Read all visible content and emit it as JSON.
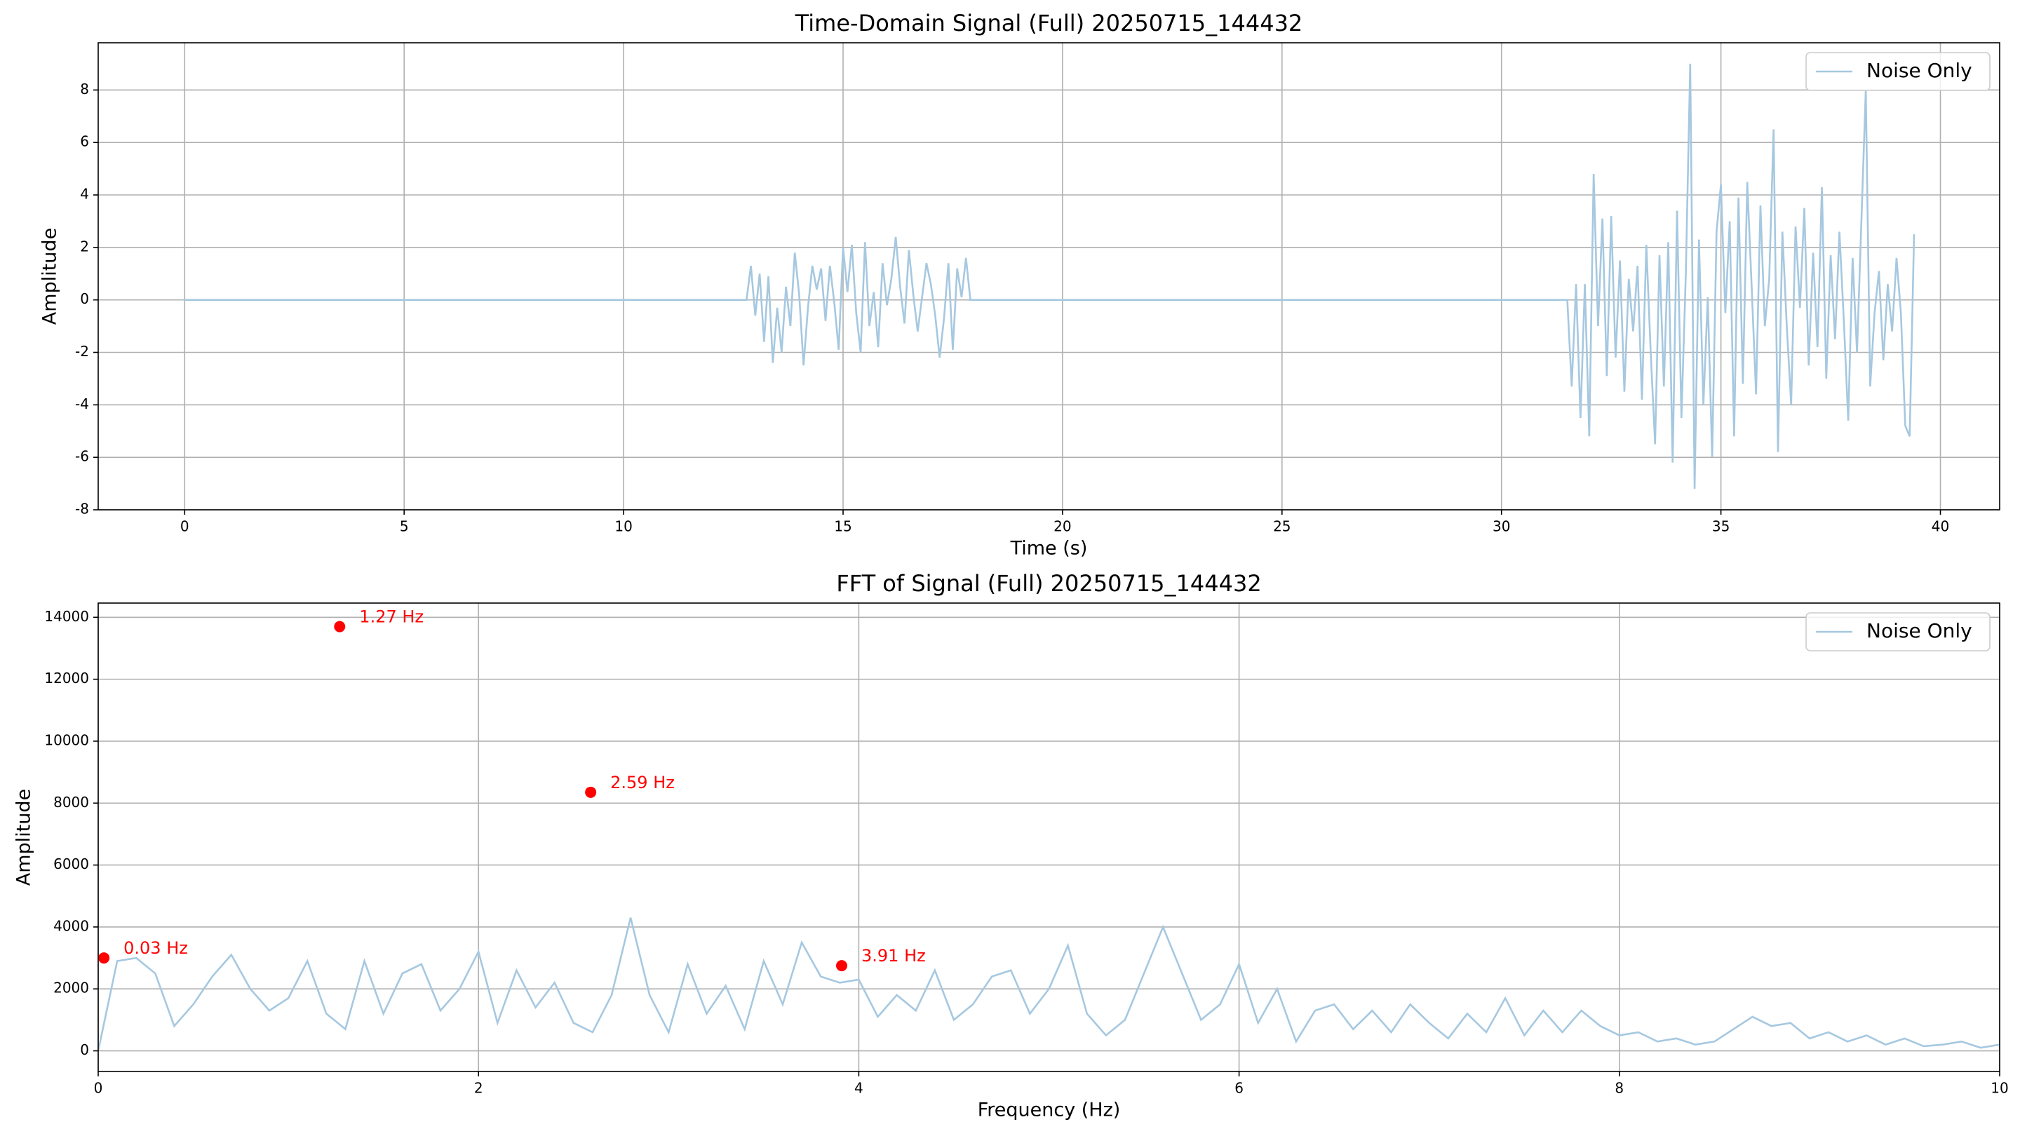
{
  "chart_data": [
    {
      "type": "line",
      "title": "Time-Domain Signal (Full) 20250715_144432",
      "xlabel": "Time (s)",
      "ylabel": "Amplitude",
      "xlim": [
        -1.97,
        41.35
      ],
      "ylim": [
        -8,
        9.8
      ],
      "xticks": [
        0,
        5,
        10,
        15,
        20,
        25,
        30,
        35,
        40
      ],
      "yticks": [
        -8,
        -6,
        -4,
        -2,
        0,
        2,
        4,
        6,
        8
      ],
      "grid": true,
      "legend": "upper right",
      "series": [
        {
          "name": "Noise Only",
          "color": "#a6c8e0",
          "x": [
            0,
            12.8,
            12.9,
            13,
            13.1,
            13.2,
            13.3,
            13.4,
            13.5,
            13.6,
            13.7,
            13.8,
            13.9,
            14,
            14.1,
            14.2,
            14.3,
            14.4,
            14.5,
            14.6,
            14.7,
            14.8,
            14.9,
            15,
            15.1,
            15.2,
            15.3,
            15.4,
            15.5,
            15.6,
            15.7,
            15.8,
            15.9,
            16,
            16.1,
            16.2,
            16.3,
            16.4,
            16.5,
            16.6,
            16.7,
            16.8,
            16.9,
            17,
            17.1,
            17.2,
            17.3,
            17.4,
            17.5,
            17.6,
            17.7,
            17.8,
            17.9,
            31.5,
            31.6,
            31.7,
            31.8,
            31.9,
            32,
            32.1,
            32.2,
            32.3,
            32.4,
            32.5,
            32.6,
            32.7,
            32.8,
            32.9,
            33,
            33.1,
            33.2,
            33.3,
            33.4,
            33.5,
            33.6,
            33.7,
            33.8,
            33.9,
            34,
            34.1,
            34.2,
            34.3,
            34.4,
            34.5,
            34.6,
            34.7,
            34.8,
            34.9,
            35,
            35.1,
            35.2,
            35.3,
            35.4,
            35.5,
            35.6,
            35.7,
            35.8,
            35.9,
            36,
            36.1,
            36.2,
            36.3,
            36.4,
            36.5,
            36.6,
            36.7,
            36.8,
            36.9,
            37,
            37.1,
            37.2,
            37.3,
            37.4,
            37.5,
            37.6,
            37.7,
            37.8,
            37.9,
            38,
            38.1,
            38.2,
            38.3,
            38.4,
            38.5,
            38.6,
            38.7,
            38.8,
            38.9,
            39,
            39.1,
            39.2,
            39.3,
            39.4
          ],
          "values": [
            0,
            0,
            1.3,
            -0.6,
            1.0,
            -1.6,
            0.9,
            -2.4,
            -0.3,
            -2.0,
            0.5,
            -1.0,
            1.8,
            0.2,
            -2.5,
            -0.3,
            1.3,
            0.4,
            1.2,
            -0.8,
            1.3,
            -0.1,
            -1.9,
            2.0,
            0.3,
            2.1,
            -0.5,
            -2.0,
            2.2,
            -1.0,
            0.3,
            -1.8,
            1.4,
            -0.2,
            0.8,
            2.4,
            0.5,
            -0.9,
            1.9,
            0.2,
            -1.2,
            0.1,
            1.4,
            0.6,
            -0.6,
            -2.2,
            -0.7,
            1.4,
            -1.9,
            1.2,
            0.1,
            1.6,
            0,
            0,
            -3.3,
            0.6,
            -4.5,
            0.6,
            -5.2,
            4.8,
            -1.0,
            3.1,
            -2.9,
            3.2,
            -2.2,
            1.5,
            -3.5,
            0.8,
            -1.2,
            1.3,
            -3.8,
            2.1,
            -2.0,
            -5.5,
            1.7,
            -3.3,
            2.2,
            -6.2,
            3.4,
            -4.5,
            1.0,
            9.0,
            -7.2,
            2.3,
            -4.0,
            0.1,
            -6.0,
            2.6,
            4.4,
            -0.5,
            3.0,
            -5.2,
            3.9,
            -3.2,
            4.5,
            0.5,
            -3.6,
            3.6,
            -1.0,
            0.8,
            6.5,
            -5.8,
            2.6,
            -1.0,
            -4.0,
            2.8,
            -0.3,
            3.5,
            -2.5,
            1.8,
            -1.8,
            4.3,
            -3.0,
            1.7,
            -1.5,
            2.6,
            -0.8,
            -4.6,
            1.6,
            -2.0,
            3.0,
            8.0,
            -3.3,
            -0.5,
            1.1,
            -2.3,
            0.6,
            -1.2,
            1.6,
            -0.5,
            -4.8,
            -5.2,
            2.5
          ]
        }
      ]
    },
    {
      "type": "line",
      "title": "FFT of Signal (Full) 20250715_144432",
      "xlabel": "Frequency (Hz)",
      "ylabel": "Amplitude",
      "xlim": [
        0,
        10
      ],
      "ylim": [
        -667,
        14460
      ],
      "xticks": [
        0,
        2,
        4,
        6,
        8,
        10
      ],
      "yticks": [
        0,
        2000,
        4000,
        6000,
        8000,
        10000,
        12000,
        14000
      ],
      "grid": true,
      "legend": "upper right",
      "series": [
        {
          "name": "Noise Only",
          "color": "#a6c8e0",
          "x": [
            0,
            0.1,
            0.2,
            0.3,
            0.4,
            0.5,
            0.6,
            0.7,
            0.8,
            0.9,
            1,
            1.1,
            1.2,
            1.3,
            1.4,
            1.5,
            1.6,
            1.7,
            1.8,
            1.9,
            2,
            2.1,
            2.2,
            2.3,
            2.4,
            2.5,
            2.6,
            2.7,
            2.8,
            2.9,
            3,
            3.1,
            3.2,
            3.3,
            3.4,
            3.5,
            3.6,
            3.7,
            3.8,
            3.9,
            4,
            4.1,
            4.2,
            4.3,
            4.4,
            4.5,
            4.6,
            4.7,
            4.8,
            4.9,
            5,
            5.1,
            5.2,
            5.3,
            5.4,
            5.5,
            5.6,
            5.7,
            5.8,
            5.9,
            6,
            6.1,
            6.2,
            6.3,
            6.4,
            6.5,
            6.6,
            6.7,
            6.8,
            6.9,
            7,
            7.1,
            7.2,
            7.3,
            7.4,
            7.5,
            7.6,
            7.7,
            7.8,
            7.9,
            8,
            8.1,
            8.2,
            8.3,
            8.4,
            8.5,
            8.6,
            8.7,
            8.8,
            8.9,
            9,
            9.1,
            9.2,
            9.3,
            9.4,
            9.5,
            9.6,
            9.7,
            9.8,
            9.9,
            10
          ],
          "values": [
            0,
            2900,
            3000,
            2500,
            800,
            1500,
            2400,
            3100,
            2000,
            1300,
            1700,
            2900,
            1200,
            700,
            2900,
            1200,
            2500,
            2800,
            1300,
            2000,
            3200,
            900,
            2600,
            1400,
            2200,
            900,
            600,
            1800,
            4300,
            1800,
            600,
            2800,
            1200,
            2100,
            700,
            2900,
            1500,
            3500,
            2400,
            2200,
            2300,
            1100,
            1800,
            1300,
            2600,
            1000,
            1500,
            2400,
            2600,
            1200,
            2000,
            3400,
            1200,
            500,
            1000,
            2500,
            4000,
            2500,
            1000,
            1500,
            2800,
            900,
            2000,
            300,
            1300,
            1500,
            700,
            1300,
            600,
            1500,
            900,
            400,
            1200,
            600,
            1700,
            500,
            1300,
            600,
            1300,
            800,
            500,
            600,
            300,
            400,
            200,
            300,
            700,
            1100,
            800,
            900,
            400,
            600,
            300,
            500,
            200,
            400,
            150,
            200,
            300,
            100,
            200
          ]
        }
      ],
      "peaks": {
        "color": "#ff0000",
        "x": [
          0.03,
          1.27,
          2.59,
          3.91
        ],
        "values": [
          3000,
          13700,
          8350,
          2750
        ],
        "labels": [
          "0.03 Hz",
          "1.27 Hz",
          "2.59 Hz",
          "3.91 Hz"
        ]
      }
    }
  ]
}
